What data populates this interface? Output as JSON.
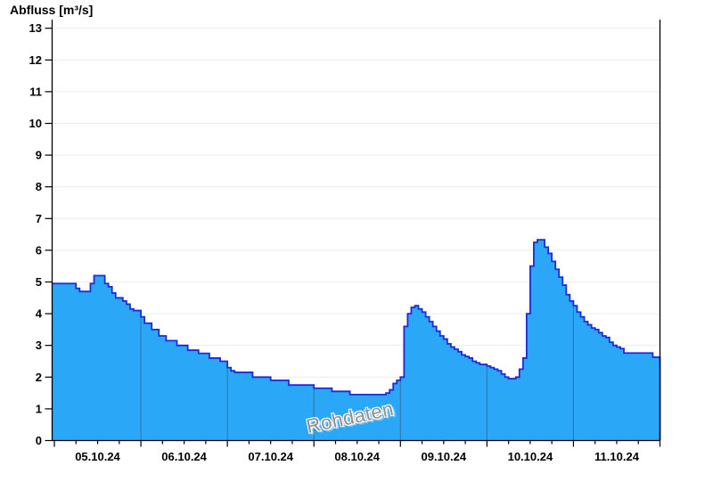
{
  "header": {
    "title": "Abfluss [m³/s]"
  },
  "watermark": "Rohdaten",
  "colors": {
    "area_fill": "#2AA7F7",
    "area_outline": "#1E2BD8",
    "day_divider": "#2F76A4",
    "grid": "#ECECEC",
    "axis": "#000000",
    "tick_label": "#000000",
    "watermark_text": "#8F8F8F",
    "watermark_halo": "#FFFFFF",
    "background": "#FFFFFF"
  },
  "chart_data": {
    "type": "area",
    "step": true,
    "title": "Abfluss [m³/s]",
    "xlabel": "",
    "ylabel": "Abfluss [m³/s]",
    "unit": "m³/s",
    "series_label": "Rohdaten",
    "grid": "horizontal",
    "legend": "none",
    "ylim": [
      0,
      13
    ],
    "y_ticks": [
      0,
      1,
      2,
      3,
      4,
      5,
      6,
      7,
      8,
      9,
      10,
      11,
      12,
      13
    ],
    "x_tick_labels": [
      "05.10.24",
      "06.10.24",
      "07.10.24",
      "08.10.24",
      "09.10.24",
      "10.10.24",
      "11.10.24"
    ],
    "x_span_days": 7,
    "step_hours": 1,
    "minor_tick_hours": 6,
    "values": [
      4.95,
      4.95,
      4.95,
      4.95,
      4.95,
      4.95,
      4.8,
      4.7,
      4.7,
      4.7,
      4.95,
      5.2,
      5.2,
      5.2,
      4.95,
      4.85,
      4.65,
      4.5,
      4.5,
      4.4,
      4.3,
      4.15,
      4.1,
      4.1,
      3.9,
      3.7,
      3.7,
      3.5,
      3.5,
      3.3,
      3.3,
      3.15,
      3.15,
      3.15,
      3.0,
      3.0,
      3.0,
      2.85,
      2.85,
      2.85,
      2.75,
      2.75,
      2.75,
      2.6,
      2.6,
      2.6,
      2.5,
      2.5,
      2.3,
      2.2,
      2.15,
      2.15,
      2.15,
      2.15,
      2.15,
      2.0,
      2.0,
      2.0,
      2.0,
      2.0,
      1.9,
      1.9,
      1.9,
      1.9,
      1.9,
      1.75,
      1.75,
      1.75,
      1.75,
      1.75,
      1.75,
      1.75,
      1.65,
      1.65,
      1.65,
      1.65,
      1.65,
      1.55,
      1.55,
      1.55,
      1.55,
      1.55,
      1.45,
      1.45,
      1.45,
      1.45,
      1.45,
      1.45,
      1.45,
      1.45,
      1.45,
      1.45,
      1.5,
      1.6,
      1.8,
      1.9,
      2.0,
      3.6,
      4.0,
      4.2,
      4.25,
      4.15,
      4.05,
      3.9,
      3.75,
      3.6,
      3.45,
      3.3,
      3.2,
      3.05,
      2.95,
      2.88,
      2.8,
      2.7,
      2.65,
      2.6,
      2.5,
      2.45,
      2.4,
      2.4,
      2.35,
      2.3,
      2.25,
      2.2,
      2.1,
      2.0,
      1.95,
      1.95,
      2.0,
      2.25,
      2.6,
      4.0,
      5.5,
      6.25,
      6.33,
      6.33,
      6.1,
      5.9,
      5.65,
      5.4,
      5.15,
      4.9,
      4.6,
      4.4,
      4.25,
      4.05,
      3.9,
      3.75,
      3.65,
      3.55,
      3.5,
      3.4,
      3.3,
      3.25,
      3.1,
      3.0,
      2.95,
      2.9,
      2.76,
      2.76,
      2.76,
      2.76,
      2.76,
      2.76,
      2.76,
      2.76,
      2.63,
      2.63
    ]
  }
}
